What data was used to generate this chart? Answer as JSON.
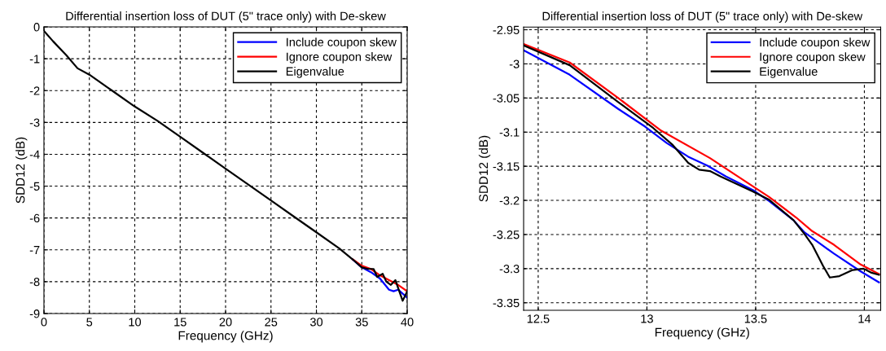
{
  "chart_data": [
    {
      "type": "line",
      "title": "Differential insertion loss of DUT (5\" trace only) with De-skew",
      "xlabel": "Frequency (GHz)",
      "ylabel": "SDD12 (dB)",
      "xlim": [
        0,
        40
      ],
      "ylim": [
        -9,
        0
      ],
      "xticks": [
        0,
        5,
        10,
        15,
        20,
        25,
        30,
        35,
        40
      ],
      "yticks": [
        -9,
        -8,
        -7,
        -6,
        -5,
        -4,
        -3,
        -2,
        -1,
        0
      ],
      "grid": true,
      "legend": "top right",
      "line_style": "solid",
      "marker": "none",
      "series": [
        {
          "name": "Include coupon skew",
          "color": "#0000ff",
          "x": [
            34,
            35,
            36,
            37,
            38,
            38.5,
            39,
            40
          ],
          "values": [
            -7.3,
            -7.55,
            -7.7,
            -7.9,
            -8.25,
            -8.3,
            -8.25,
            -8.5
          ]
        },
        {
          "name": "Ignore coupon skew",
          "color": "#ff0000",
          "x": [
            34,
            35,
            36,
            37,
            38,
            39,
            40
          ],
          "values": [
            -7.3,
            -7.5,
            -7.6,
            -7.8,
            -7.95,
            -8.1,
            -8.3
          ]
        },
        {
          "name": "Eigenvalue",
          "color": "#000000",
          "x": [
            0,
            1,
            2.5,
            3.7,
            5,
            7,
            7.5,
            10,
            12.5,
            15,
            17.5,
            20,
            22.5,
            25,
            27.5,
            30,
            32.5,
            34,
            35,
            35.7,
            36.3,
            36.7,
            37.3,
            37.7,
            38.2,
            38.7,
            39,
            39.5,
            40
          ],
          "values": [
            -0.13,
            -0.45,
            -0.9,
            -1.3,
            -1.5,
            -1.9,
            -2.0,
            -2.5,
            -2.95,
            -3.45,
            -3.95,
            -4.45,
            -4.95,
            -5.45,
            -5.95,
            -6.45,
            -6.95,
            -7.3,
            -7.55,
            -7.6,
            -7.6,
            -7.85,
            -7.75,
            -8.0,
            -8.1,
            -7.95,
            -8.2,
            -8.6,
            -8.3
          ]
        }
      ]
    },
    {
      "type": "line",
      "title": "Differential insertion loss of DUT (5\" trace only) with De-skew",
      "xlabel": "Frequency (GHz)",
      "ylabel": "SDD12 (dB)",
      "xlim": [
        12.433,
        14.075
      ],
      "ylim": [
        -3.361,
        -2.946
      ],
      "xticks": [
        12.5,
        13,
        13.5,
        14
      ],
      "yticks": [
        -3.35,
        -3.3,
        -3.25,
        -3.2,
        -3.15,
        -3.1,
        -3.05,
        -3,
        -2.95
      ],
      "grid": true,
      "legend": "top right",
      "line_style": "solid",
      "marker": "none",
      "series": [
        {
          "name": "Include coupon skew",
          "color": "#0000ff",
          "x": [
            12.433,
            12.645,
            12.868,
            12.992,
            13.091,
            13.19,
            13.277,
            13.364,
            13.488,
            13.562,
            13.674,
            13.725,
            13.86,
            13.983,
            14.067
          ],
          "values": [
            -2.98,
            -3.016,
            -3.066,
            -3.092,
            -3.116,
            -3.136,
            -3.149,
            -3.165,
            -3.185,
            -3.201,
            -3.229,
            -3.247,
            -3.278,
            -3.304,
            -3.32
          ]
        },
        {
          "name": "Ignore coupon skew",
          "color": "#ff0000",
          "x": [
            12.433,
            12.645,
            12.868,
            13.066,
            13.29,
            13.438,
            13.562,
            13.686,
            13.76,
            13.86,
            13.983,
            14.067
          ],
          "values": [
            -2.971,
            -2.998,
            -3.05,
            -3.098,
            -3.138,
            -3.169,
            -3.195,
            -3.225,
            -3.245,
            -3.265,
            -3.294,
            -3.308
          ]
        },
        {
          "name": "Eigenvalue",
          "color": "#000000",
          "x": [
            12.433,
            12.645,
            12.868,
            13.029,
            13.116,
            13.19,
            13.24,
            13.29,
            13.339,
            13.488,
            13.562,
            13.674,
            13.724,
            13.76,
            13.81,
            13.841,
            13.885,
            13.946,
            13.996,
            14.033,
            14.067
          ],
          "values": [
            -2.973,
            -3.002,
            -3.056,
            -3.094,
            -3.118,
            -3.145,
            -3.155,
            -3.157,
            -3.165,
            -3.187,
            -3.199,
            -3.229,
            -3.249,
            -3.265,
            -3.296,
            -3.313,
            -3.311,
            -3.302,
            -3.3,
            -3.306,
            -3.309
          ]
        }
      ]
    }
  ]
}
